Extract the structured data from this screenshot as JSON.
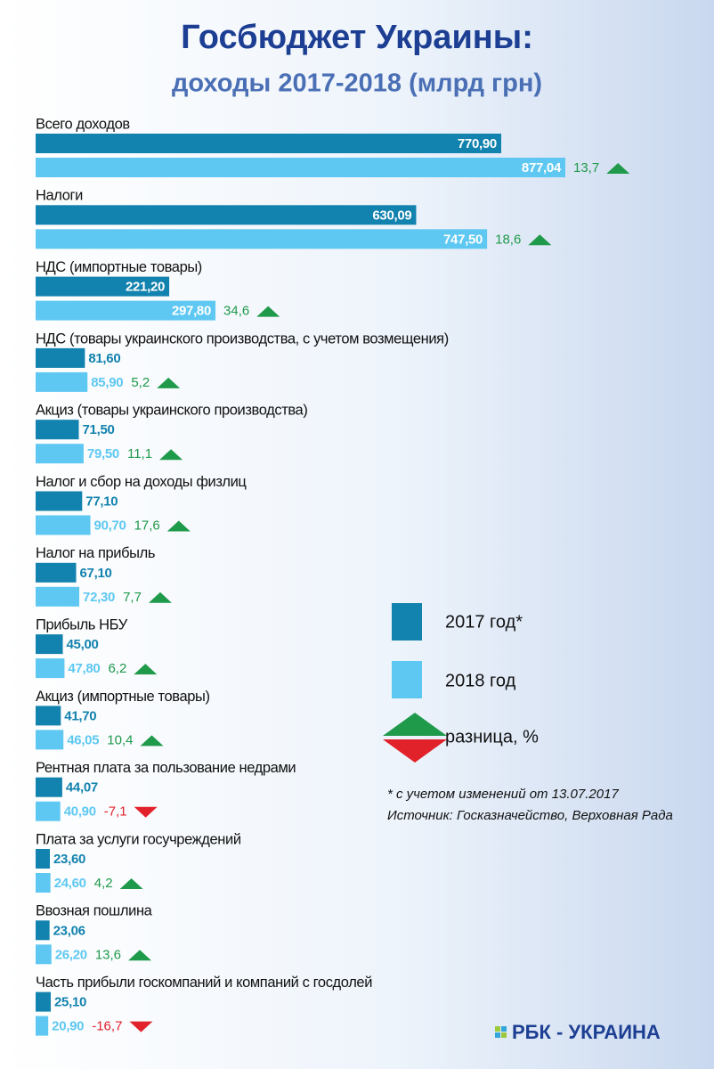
{
  "chart_data": {
    "type": "bar",
    "orientation": "horizontal",
    "title": "Госбюджет Украины:",
    "subtitle": "доходы 2017-2018 (млрд грн)",
    "categories": [
      "Всего доходов",
      "Налоги",
      "НДС (импортные товары)",
      "НДС (товары украинского производства, с учетом возмещения)",
      "Акциз (товары украинского производства)",
      "Налог и сбор на доходы физлиц",
      "Налог на прибыль",
      "Прибыль НБУ",
      "Акциз (импортные товары)",
      "Рентная плата за пользование недрами",
      "Плата за услуги госучреждений",
      "Ввозная пошлина",
      "Часть прибыли госкомпаний и компаний с госдолей"
    ],
    "series": [
      {
        "name": "2017 год*",
        "color": "#1282ae",
        "values": [
          770.9,
          630.09,
          221.2,
          81.6,
          71.5,
          77.1,
          67.1,
          45.0,
          41.7,
          44.07,
          23.6,
          23.06,
          25.1
        ],
        "value_labels": [
          "770,90",
          "630,09",
          "221,20",
          "81,60",
          "71,50",
          "77,10",
          "67,10",
          "45,00",
          "41,70",
          "44,07",
          "23,60",
          "23,06",
          "25,10"
        ]
      },
      {
        "name": "2018 год",
        "color": "#5ec8f2",
        "values": [
          877.04,
          747.5,
          297.8,
          85.9,
          79.5,
          90.7,
          72.3,
          47.8,
          46.05,
          40.9,
          24.6,
          26.2,
          20.9
        ],
        "value_labels": [
          "877,04",
          "747,50",
          "297,80",
          "85,90",
          "79,50",
          "90,70",
          "72,30",
          "47,80",
          "46,05",
          "40,90",
          "24,60",
          "26,20",
          "20,90"
        ]
      }
    ],
    "change": {
      "name": "разница, %",
      "up_color": "#1f9a4b",
      "down_color": "#e2222b",
      "values": [
        13.7,
        18.6,
        34.6,
        5.2,
        11.1,
        17.6,
        7.7,
        6.2,
        10.4,
        -7.1,
        4.2,
        13.6,
        -16.7
      ],
      "value_labels": [
        "13,7",
        "18,6",
        "34,6",
        "5,2",
        "11,1",
        "17,6",
        "7,7",
        "6,2",
        "10,4",
        "-7,1",
        "4,2",
        "13,6",
        "-16,7"
      ]
    },
    "notes": [
      "* с учетом изменений от 13.07.2017",
      "Источник: Госказначейство, Верховная Рада"
    ],
    "brand": "РБК - УКРАИНА"
  }
}
